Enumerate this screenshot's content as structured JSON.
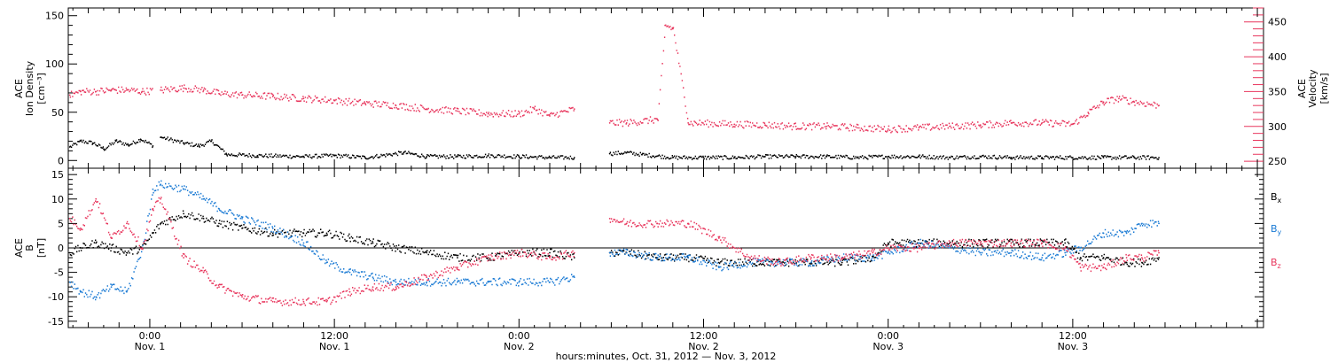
{
  "figure": {
    "xlabel": "hours:minutes, Oct. 31, 2012 — Nov.  3, 2012",
    "x_ticks": [
      {
        "time_label": "0:00",
        "date_label": "Nov. 1",
        "hour": 24
      },
      {
        "time_label": "12:00",
        "date_label": "Nov. 1",
        "hour": 36
      },
      {
        "time_label": "0:00",
        "date_label": "Nov. 2",
        "hour": 48
      },
      {
        "time_label": "12:00",
        "date_label": "Nov. 2",
        "hour": 60
      },
      {
        "time_label": "0:00",
        "date_label": "Nov. 3",
        "hour": 72
      },
      {
        "time_label": "12:00",
        "date_label": "Nov. 3",
        "hour": 84
      }
    ],
    "xlim_hours": [
      18.7,
      96.4
    ],
    "data_end_hour": 89.6
  },
  "colors": {
    "axis": "#000000",
    "density": "#000000",
    "velocity": "#e8365d",
    "bx": "#000000",
    "by": "#1a7ad4",
    "bz": "#e8365d"
  },
  "chart_data": [
    {
      "type": "scatter",
      "panel": "plasma",
      "ylabel_left": [
        "ACE",
        "Ion Density",
        "[cm⁻³]"
      ],
      "ylabel_right": [
        "ACE",
        "Velocity",
        "[km/s]"
      ],
      "ylim_left": [
        -8,
        158
      ],
      "ylim_right": [
        240,
        470
      ],
      "yticks_left": [
        "0",
        "50",
        "100",
        "150"
      ],
      "yticks_right": [
        "250",
        "300",
        "350",
        "400",
        "450"
      ],
      "series": [
        {
          "name": "Ion Density",
          "axis": "left",
          "x": [
            18.8,
            19.5,
            20.3,
            21.0,
            21.8,
            22.6,
            23.4,
            24.2,
            24.7,
            26.2,
            27.2,
            28.0,
            29,
            31,
            34,
            36,
            38,
            40.5,
            42,
            44,
            46,
            48,
            50,
            51.6,
            53.9,
            55,
            56,
            58,
            60,
            62,
            64,
            66,
            68,
            70,
            72,
            74,
            76,
            78,
            80,
            82,
            84,
            86,
            88,
            89.6
          ],
          "y": [
            14,
            20,
            18,
            12,
            20,
            16,
            22,
            15,
            24,
            18,
            15,
            20,
            6,
            5,
            4,
            5,
            3,
            8,
            4,
            4,
            5,
            4,
            3,
            3,
            7,
            8,
            6,
            3,
            3,
            3,
            4,
            4,
            4,
            3,
            4,
            4,
            3,
            4,
            3,
            3,
            3,
            3,
            3,
            3
          ]
        },
        {
          "name": "Velocity",
          "axis": "right",
          "x": [
            18.8,
            19.5,
            20.5,
            21.5,
            22.5,
            23.5,
            24.7,
            26.2,
            27.5,
            28.5,
            30,
            32,
            34,
            36,
            38,
            40,
            42,
            44,
            46,
            48,
            49,
            50,
            51.6,
            53.9,
            55,
            57,
            57.5,
            58,
            59,
            62,
            64,
            66,
            68,
            70,
            72,
            74,
            76,
            78,
            80,
            82,
            84,
            85,
            86,
            87,
            88,
            89.6
          ],
          "y": [
            345,
            350,
            350,
            352,
            352,
            350,
            352,
            355,
            352,
            347,
            345,
            343,
            340,
            337,
            333,
            330,
            325,
            322,
            318,
            318,
            325,
            315,
            325,
            305,
            305,
            310,
            445,
            440,
            305,
            303,
            302,
            300,
            300,
            298,
            296,
            298,
            300,
            302,
            305,
            305,
            303,
            320,
            335,
            340,
            335,
            330
          ]
        }
      ]
    },
    {
      "type": "line",
      "panel": "magnetic-field",
      "ylabel_left": [
        "ACE",
        "B",
        "[nT]"
      ],
      "ylim": [
        -16.3,
        16.3
      ],
      "yticks": [
        "-15",
        "-10",
        "-5",
        "0",
        "5",
        "10",
        "15"
      ],
      "legend": [
        "Bx",
        "By",
        "Bz"
      ],
      "series": [
        {
          "name": "Bx",
          "x": [
            18.8,
            19.5,
            20.5,
            21.5,
            22.5,
            23.5,
            24.2,
            24.7,
            26.2,
            27.5,
            28.5,
            30,
            32,
            34,
            35.5,
            37,
            38.5,
            40,
            42,
            44,
            46,
            48,
            50,
            51.6,
            53.9,
            55,
            57,
            59,
            61,
            63,
            65,
            67,
            69,
            71,
            72,
            74,
            76,
            78,
            80,
            82,
            83.5,
            84.5,
            86,
            87.5,
            88.5,
            89.6
          ],
          "y": [
            -1,
            0,
            1,
            0,
            -1,
            0,
            3,
            5,
            7,
            6,
            5,
            4,
            3,
            3,
            3,
            2,
            1,
            0,
            -1,
            -2,
            -2,
            -1,
            -1,
            -2,
            -1,
            -1,
            -2,
            -2,
            -3,
            -3,
            -3,
            -3,
            -3,
            -2,
            1,
            1,
            1,
            1,
            1,
            1,
            1,
            -2,
            -2,
            -3,
            -3,
            -2
          ]
        },
        {
          "name": "By",
          "x": [
            18.8,
            19.5,
            20.5,
            21.5,
            22.5,
            23.5,
            24.2,
            24.7,
            26.2,
            27.5,
            28.5,
            30,
            32,
            34,
            35.5,
            37,
            38.5,
            40,
            42,
            44,
            46,
            48,
            50,
            51.6,
            53.9,
            55,
            57,
            59,
            61,
            63,
            65,
            67,
            69,
            71,
            72,
            74,
            76,
            78,
            80,
            82,
            83.5,
            84.5,
            86,
            87.5,
            88.5,
            89.6
          ],
          "y": [
            -7,
            -9,
            -10,
            -8,
            -9,
            0,
            12,
            13,
            12,
            10,
            8,
            6,
            4,
            1,
            -3,
            -5,
            -6,
            -7,
            -7,
            -7,
            -7,
            -7,
            -7,
            -6,
            -1,
            -1,
            -2,
            -2,
            -4,
            -3,
            -3,
            -3,
            -2,
            -2,
            -1,
            1,
            0,
            -1,
            -1,
            -2,
            -1,
            0,
            3,
            3,
            5,
            5
          ]
        },
        {
          "name": "Bz",
          "x": [
            18.8,
            19.5,
            20.5,
            21.5,
            22.5,
            23.5,
            24.2,
            24.7,
            26.2,
            27.5,
            28.5,
            30,
            32,
            34,
            35.5,
            37,
            38.5,
            40,
            42,
            44,
            46,
            48,
            50,
            51.6,
            53.9,
            55,
            57,
            59,
            61,
            63,
            65,
            67,
            69,
            71,
            72,
            74,
            76,
            78,
            80,
            82,
            83.5,
            84.5,
            86,
            87.5,
            88.5,
            89.6
          ],
          "y": [
            6,
            4,
            10,
            2,
            5,
            0,
            8,
            10,
            -2,
            -5,
            -8,
            -10,
            -11,
            -11,
            -11,
            -9,
            -8,
            -8,
            -6,
            -4,
            -2,
            -1,
            -2,
            -1,
            6,
            5,
            5,
            5,
            2,
            -2,
            -3,
            -2,
            -2,
            -1,
            0,
            0,
            1,
            1,
            1,
            1,
            0,
            -4,
            -4,
            -2,
            -2,
            -1
          ]
        }
      ]
    }
  ]
}
